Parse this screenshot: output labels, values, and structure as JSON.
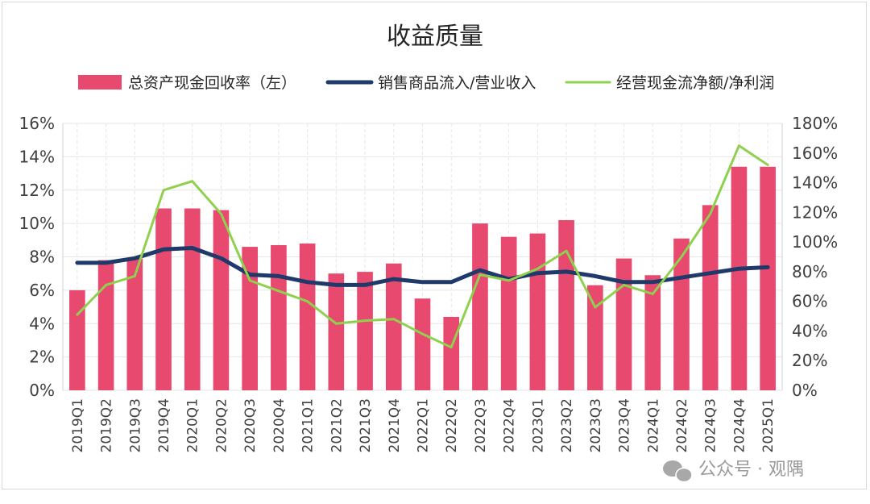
{
  "chart_data": {
    "type": "bar",
    "title": "收益质量",
    "categories": [
      "2019Q1",
      "2019Q2",
      "2019Q3",
      "2019Q4",
      "2020Q1",
      "2020Q2",
      "2020Q3",
      "2020Q4",
      "2021Q1",
      "2021Q2",
      "2021Q3",
      "2021Q4",
      "2022Q1",
      "2022Q2",
      "2022Q3",
      "2022Q4",
      "2023Q1",
      "2023Q2",
      "2023Q3",
      "2023Q4",
      "2024Q1",
      "2024Q2",
      "2024Q3",
      "2024Q4",
      "2025Q1"
    ],
    "series": [
      {
        "name": "总资产现金回收率（左）",
        "type": "bar",
        "axis": "left",
        "color": "#e8496f",
        "values": [
          6.0,
          7.8,
          7.9,
          10.9,
          10.9,
          10.8,
          8.6,
          8.7,
          8.8,
          7.0,
          7.1,
          7.6,
          5.5,
          4.4,
          10.0,
          9.2,
          9.4,
          10.2,
          6.3,
          7.9,
          6.9,
          9.1,
          11.1,
          13.4,
          13.4
        ]
      },
      {
        "name": "销售商品流入/营业收入",
        "type": "line",
        "axis": "right",
        "color": "#1f3a6a",
        "values": [
          86,
          86,
          89,
          95,
          96,
          89,
          78,
          77,
          73,
          71,
          71,
          75,
          73,
          73,
          81,
          75,
          79,
          80,
          77,
          73,
          73,
          76,
          79,
          82,
          83
        ]
      },
      {
        "name": "经营现金流净额/净利润",
        "type": "line",
        "axis": "right",
        "color": "#8fd14f",
        "values": [
          51,
          71,
          77,
          135,
          141,
          119,
          74,
          67,
          60,
          45,
          47,
          48,
          38,
          29,
          78,
          74,
          82,
          94,
          56,
          71,
          65,
          90,
          119,
          165,
          152
        ]
      }
    ],
    "y_left": {
      "ylim": [
        0,
        16
      ],
      "ticks": [
        "0%",
        "2%",
        "4%",
        "6%",
        "8%",
        "10%",
        "12%",
        "14%",
        "16%"
      ]
    },
    "y_right": {
      "ylim": [
        0,
        180
      ],
      "ticks": [
        "0%",
        "20%",
        "40%",
        "60%",
        "80%",
        "100%",
        "120%",
        "140%",
        "160%",
        "180%"
      ]
    },
    "xlabel": "",
    "ylabel": "",
    "grid": true,
    "legend_position": "top"
  },
  "watermark": {
    "text": "公众号 · 观隅",
    "icon": "wechat-icon"
  }
}
